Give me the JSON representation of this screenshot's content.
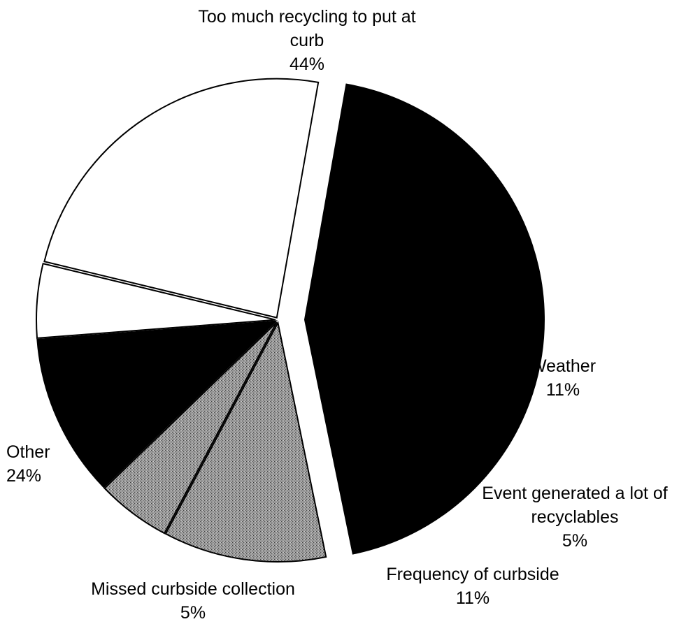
{
  "chart_data": {
    "type": "pie",
    "slices": [
      {
        "label_lines": [
          "Too much recycling to put at",
          "curb"
        ],
        "pct_label": "44%",
        "value": 44,
        "fill": "#000000",
        "pattern": false,
        "exploded": true
      },
      {
        "label_lines": [
          "Weather"
        ],
        "pct_label": "11%",
        "value": 11,
        "fill": "#8a8a8a",
        "pattern": true,
        "exploded": false
      },
      {
        "label_lines": [
          "Event generated a lot of",
          "recyclables"
        ],
        "pct_label": "5%",
        "value": 5,
        "fill": "#8a8a8a",
        "pattern": true,
        "exploded": false
      },
      {
        "label_lines": [
          "Frequency of curbside"
        ],
        "pct_label": "11%",
        "value": 11,
        "fill": "#000000",
        "pattern": false,
        "exploded": false
      },
      {
        "label_lines": [
          "Missed curbside collection"
        ],
        "pct_label": "5%",
        "value": 5,
        "fill": "#ffffff",
        "pattern": false,
        "exploded": false
      },
      {
        "label_lines": [
          "Other"
        ],
        "pct_label": "24%",
        "value": 24,
        "fill": "#ffffff",
        "pattern": false,
        "exploded": false
      }
    ]
  }
}
